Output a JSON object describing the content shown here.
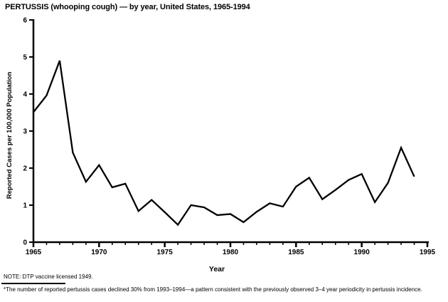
{
  "page": {
    "background": "#ffffff",
    "ink": "#000000"
  },
  "title": "PERTUSSIS (whooping cough) — by year, United States, 1965-1994",
  "notes": {
    "note": "NOTE: DTP vaccine licensed 1949.",
    "footnote_marker": "*",
    "footnote": "The number of reported pertussis cases declined 30% from 1993–1994—a pattern consistent with the previously observed 3–4 year periodicity in pertussis incidence."
  },
  "chart_data": {
    "type": "line",
    "title": "PERTUSSIS (whooping cough) — by year, United States, 1965-1994",
    "xlabel": "Year",
    "ylabel": "Reported Cases per 100,000 Population",
    "x": [
      1965,
      1966,
      1967,
      1968,
      1969,
      1970,
      1971,
      1972,
      1973,
      1974,
      1975,
      1976,
      1977,
      1978,
      1979,
      1980,
      1981,
      1982,
      1983,
      1984,
      1985,
      1986,
      1987,
      1988,
      1989,
      1990,
      1991,
      1992,
      1993,
      1994
    ],
    "values": [
      3.51,
      3.96,
      4.9,
      2.42,
      1.63,
      2.08,
      1.48,
      1.58,
      0.84,
      1.14,
      0.81,
      0.47,
      1.0,
      0.94,
      0.73,
      0.76,
      0.54,
      0.82,
      1.05,
      0.96,
      1.5,
      1.74,
      1.16,
      1.41,
      1.68,
      1.84,
      1.08,
      1.6,
      2.55,
      1.77
    ],
    "xlim": [
      1965,
      1995
    ],
    "ylim": [
      0,
      6
    ],
    "xticks_major": [
      1965,
      1970,
      1975,
      1980,
      1985,
      1990,
      1995
    ],
    "xticks_minor_interval": 1,
    "yticks": [
      0,
      1,
      2,
      3,
      4,
      5,
      6
    ],
    "grid": false,
    "legend": "none",
    "line_color": "#000000",
    "line_width": 2.3
  }
}
